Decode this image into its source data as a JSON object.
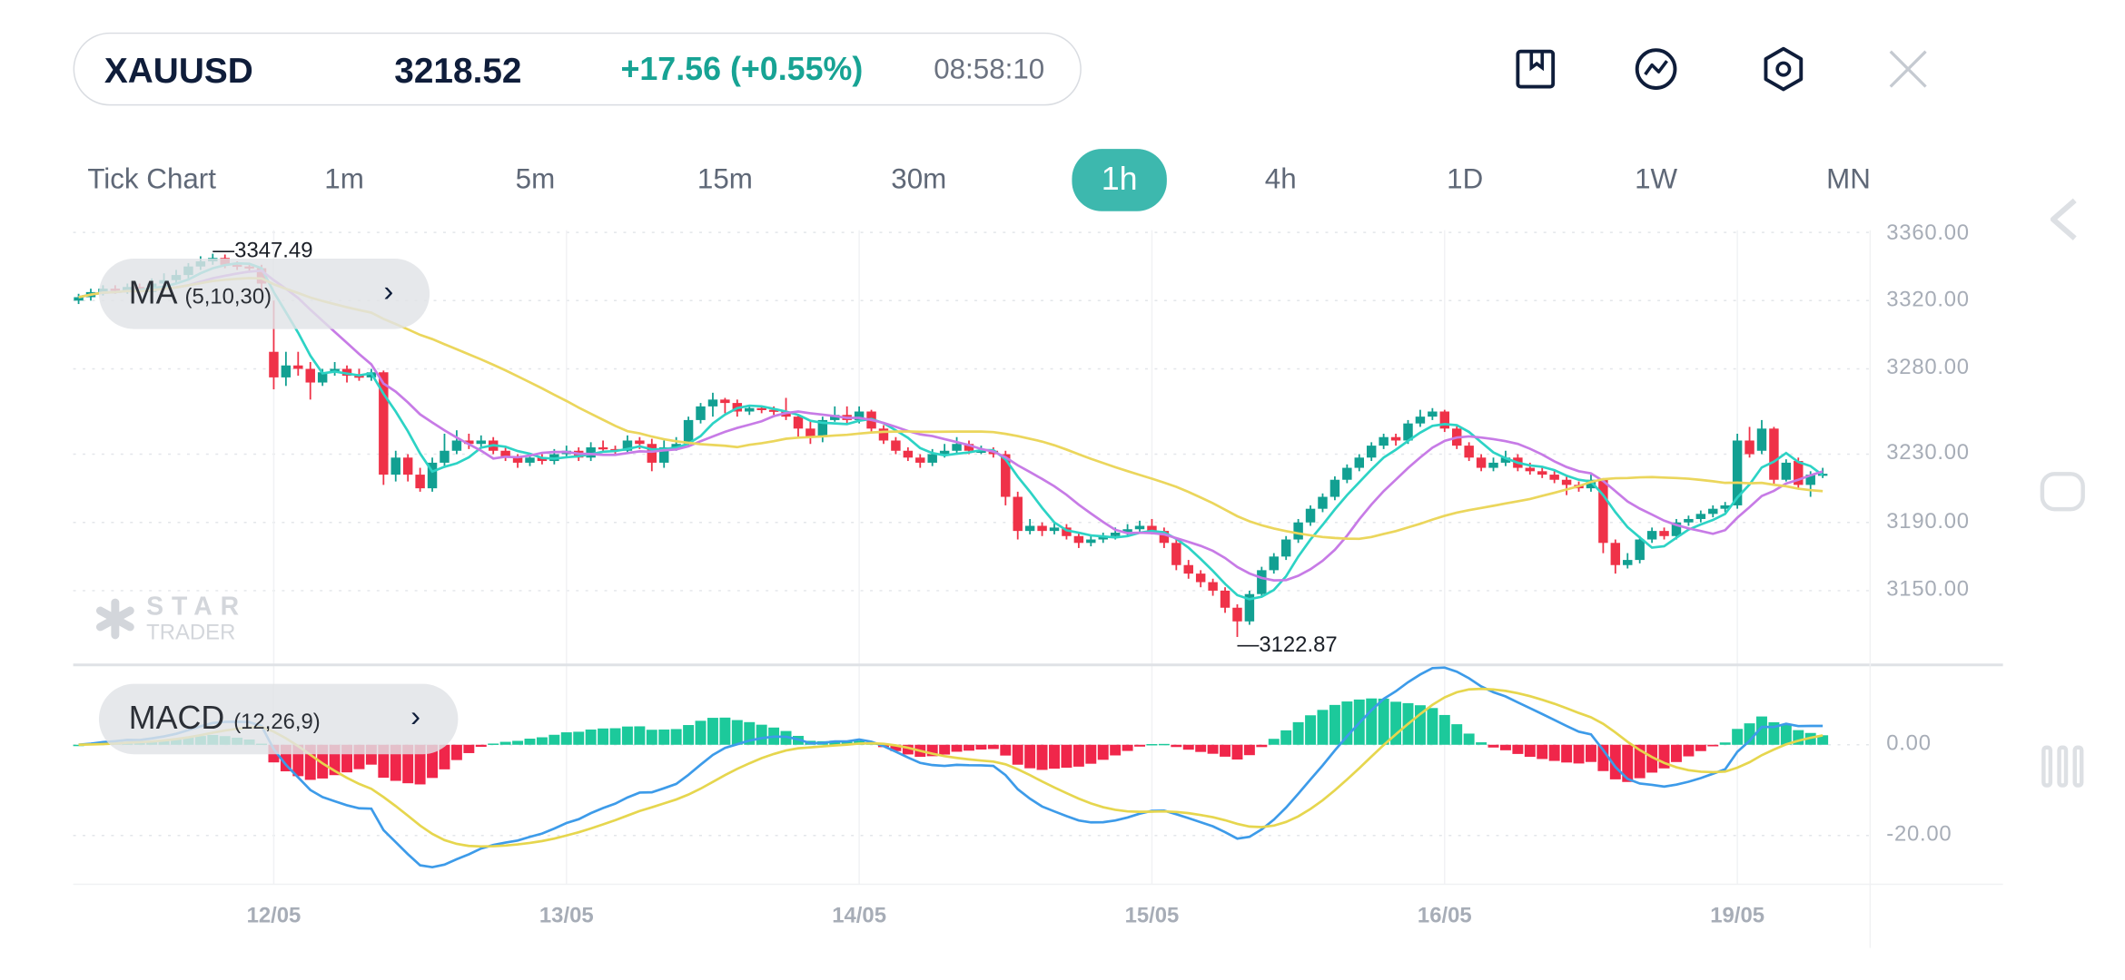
{
  "header": {
    "symbol": "XAUUSD",
    "price": "3218.52",
    "change": "+17.56 (+0.55%)",
    "time": "08:58:10",
    "icons": [
      "bookmark-icon",
      "chart-trend-icon",
      "settings-hexagon-icon",
      "close-icon"
    ]
  },
  "tabs": [
    {
      "label": "Tick Chart",
      "active": false
    },
    {
      "label": "1m",
      "active": false
    },
    {
      "label": "5m",
      "active": false
    },
    {
      "label": "15m",
      "active": false
    },
    {
      "label": "30m",
      "active": false
    },
    {
      "label": "1h",
      "active": true
    },
    {
      "label": "4h",
      "active": false
    },
    {
      "label": "1D",
      "active": false
    },
    {
      "label": "1W",
      "active": false
    },
    {
      "label": "MN",
      "active": false
    }
  ],
  "indicators": {
    "ma": {
      "name": "MA",
      "params": "(5,10,30)"
    },
    "macd": {
      "name": "MACD",
      "params": "(12,26,9)"
    }
  },
  "watermark": {
    "line1": "STAR",
    "line2": "TRADER"
  },
  "annotations": {
    "high": "3347.49",
    "low": "3122.87"
  },
  "colors": {
    "up": "#12a092",
    "down": "#ef3248",
    "ma5": "#2dd3c5",
    "ma10": "#c77be6",
    "ma30": "#ebd65c",
    "dif": "#3d9be9",
    "dea": "#e6d64e",
    "hist_up": "#1cc99b",
    "hist_down": "#f0264a",
    "accent": "#3db8ae"
  },
  "chart_data": {
    "type": "candlestick",
    "interval": "1h",
    "price_ticks": [
      "3360.00",
      "3320.00",
      "3280.00",
      "3230.00",
      "3190.00",
      "3150.00"
    ],
    "macd_ticks": [
      "0.00",
      "-20.00"
    ],
    "x_labels": [
      {
        "label": "12/05",
        "index": 16
      },
      {
        "label": "13/05",
        "index": 40
      },
      {
        "label": "14/05",
        "index": 64
      },
      {
        "label": "15/05",
        "index": 88
      },
      {
        "label": "16/05",
        "index": 112
      },
      {
        "label": "19/05",
        "index": 136
      }
    ],
    "grid": true,
    "ohlc_fields": [
      "open",
      "high",
      "low",
      "close"
    ],
    "candles": [
      [
        3320,
        3324,
        3318,
        3322
      ],
      [
        3322,
        3327,
        3320,
        3325
      ],
      [
        3325,
        3329,
        3323,
        3327
      ],
      [
        3327,
        3329,
        3324,
        3326
      ],
      [
        3326,
        3330,
        3324,
        3328
      ],
      [
        3328,
        3330,
        3323,
        3325
      ],
      [
        3325,
        3333,
        3323,
        3330
      ],
      [
        3330,
        3336,
        3328,
        3332
      ],
      [
        3332,
        3338,
        3330,
        3335
      ],
      [
        3335,
        3342,
        3333,
        3340
      ],
      [
        3340,
        3346,
        3338,
        3343
      ],
      [
        3343,
        3347.49,
        3341,
        3345
      ],
      [
        3345,
        3347,
        3339,
        3341
      ],
      [
        3341,
        3343,
        3338,
        3340
      ],
      [
        3340,
        3342,
        3337,
        3339
      ],
      [
        3339,
        3341,
        3326,
        3330
      ],
      [
        3290,
        3320,
        3268,
        3275
      ],
      [
        3275,
        3290,
        3270,
        3282
      ],
      [
        3282,
        3290,
        3276,
        3280
      ],
      [
        3280,
        3284,
        3262,
        3272
      ],
      [
        3272,
        3280,
        3270,
        3278
      ],
      [
        3278,
        3284,
        3276,
        3280
      ],
      [
        3280,
        3282,
        3272,
        3276
      ],
      [
        3276,
        3280,
        3273,
        3275
      ],
      [
        3275,
        3280,
        3273,
        3278
      ],
      [
        3278,
        3279,
        3212,
        3218
      ],
      [
        3218,
        3232,
        3214,
        3228
      ],
      [
        3228,
        3230,
        3214,
        3218
      ],
      [
        3218,
        3222,
        3208,
        3210
      ],
      [
        3210,
        3228,
        3208,
        3225
      ],
      [
        3225,
        3242,
        3222,
        3232
      ],
      [
        3232,
        3244,
        3230,
        3238
      ],
      [
        3238,
        3242,
        3233,
        3236
      ],
      [
        3236,
        3241,
        3234,
        3238
      ],
      [
        3238,
        3240,
        3230,
        3232
      ],
      [
        3232,
        3234,
        3226,
        3228
      ],
      [
        3228,
        3230,
        3222,
        3225
      ],
      [
        3225,
        3230,
        3223,
        3228
      ],
      [
        3228,
        3230,
        3224,
        3226
      ],
      [
        3226,
        3233,
        3224,
        3230
      ],
      [
        3230,
        3235,
        3228,
        3232
      ],
      [
        3232,
        3234,
        3226,
        3228
      ],
      [
        3228,
        3237,
        3226,
        3234
      ],
      [
        3234,
        3238,
        3231,
        3233
      ],
      [
        3233,
        3235,
        3230,
        3232
      ],
      [
        3232,
        3241,
        3230,
        3238
      ],
      [
        3238,
        3240,
        3233,
        3236
      ],
      [
        3236,
        3239,
        3220,
        3225
      ],
      [
        3225,
        3238,
        3222,
        3234
      ],
      [
        3234,
        3240,
        3232,
        3236
      ],
      [
        3236,
        3252,
        3234,
        3250
      ],
      [
        3250,
        3260,
        3248,
        3258
      ],
      [
        3258,
        3266,
        3252,
        3262
      ],
      [
        3262,
        3263,
        3254,
        3260
      ],
      [
        3260,
        3262,
        3252,
        3255
      ],
      [
        3255,
        3259,
        3253,
        3257
      ],
      [
        3257,
        3258,
        3254,
        3256
      ],
      [
        3256,
        3258,
        3253,
        3255
      ],
      [
        3255,
        3263,
        3250,
        3252
      ],
      [
        3252,
        3253,
        3240,
        3245
      ],
      [
        3245,
        3250,
        3236,
        3240
      ],
      [
        3240,
        3252,
        3237,
        3250
      ],
      [
        3250,
        3258,
        3249,
        3253
      ],
      [
        3253,
        3258,
        3248,
        3250
      ],
      [
        3250,
        3258,
        3248,
        3255
      ],
      [
        3255,
        3256,
        3243,
        3245
      ],
      [
        3245,
        3247,
        3236,
        3238
      ],
      [
        3238,
        3240,
        3230,
        3232
      ],
      [
        3232,
        3234,
        3226,
        3228
      ],
      [
        3228,
        3230,
        3222,
        3225
      ],
      [
        3225,
        3233,
        3223,
        3230
      ],
      [
        3230,
        3236,
        3228,
        3232
      ],
      [
        3232,
        3240,
        3230,
        3236
      ],
      [
        3236,
        3238,
        3230,
        3232
      ],
      [
        3232,
        3235,
        3230,
        3232
      ],
      [
        3232,
        3234,
        3228,
        3230
      ],
      [
        3230,
        3232,
        3200,
        3205
      ],
      [
        3205,
        3208,
        3180,
        3185
      ],
      [
        3185,
        3192,
        3183,
        3188
      ],
      [
        3188,
        3190,
        3182,
        3185
      ],
      [
        3185,
        3190,
        3183,
        3187
      ],
      [
        3187,
        3189,
        3180,
        3182
      ],
      [
        3182,
        3184,
        3175,
        3178
      ],
      [
        3178,
        3183,
        3176,
        3180
      ],
      [
        3180,
        3184,
        3178,
        3182
      ],
      [
        3182,
        3187,
        3180,
        3184
      ],
      [
        3184,
        3189,
        3182,
        3186
      ],
      [
        3186,
        3191,
        3184,
        3188
      ],
      [
        3188,
        3192,
        3183,
        3185
      ],
      [
        3185,
        3187,
        3175,
        3178
      ],
      [
        3178,
        3180,
        3162,
        3165
      ],
      [
        3165,
        3168,
        3157,
        3160
      ],
      [
        3160,
        3162,
        3152,
        3155
      ],
      [
        3155,
        3157,
        3147,
        3150
      ],
      [
        3150,
        3152,
        3137,
        3140
      ],
      [
        3140,
        3142,
        3122.87,
        3132
      ],
      [
        3132,
        3150,
        3130,
        3148
      ],
      [
        3148,
        3164,
        3146,
        3162
      ],
      [
        3162,
        3172,
        3160,
        3170
      ],
      [
        3170,
        3182,
        3168,
        3180
      ],
      [
        3180,
        3192,
        3178,
        3190
      ],
      [
        3190,
        3200,
        3188,
        3198
      ],
      [
        3198,
        3207,
        3196,
        3205
      ],
      [
        3205,
        3217,
        3203,
        3215
      ],
      [
        3215,
        3224,
        3213,
        3222
      ],
      [
        3222,
        3230,
        3220,
        3228
      ],
      [
        3228,
        3237,
        3226,
        3235
      ],
      [
        3235,
        3242,
        3233,
        3240
      ],
      [
        3240,
        3242,
        3235,
        3238
      ],
      [
        3238,
        3250,
        3236,
        3248
      ],
      [
        3248,
        3256,
        3246,
        3252
      ],
      [
        3252,
        3257,
        3250,
        3255
      ],
      [
        3255,
        3256,
        3243,
        3245
      ],
      [
        3245,
        3247,
        3233,
        3235
      ],
      [
        3235,
        3237,
        3226,
        3228
      ],
      [
        3228,
        3230,
        3220,
        3222
      ],
      [
        3222,
        3228,
        3220,
        3225
      ],
      [
        3225,
        3232,
        3223,
        3228
      ],
      [
        3228,
        3230,
        3220,
        3222
      ],
      [
        3222,
        3225,
        3218,
        3220
      ],
      [
        3220,
        3223,
        3216,
        3218
      ],
      [
        3218,
        3221,
        3213,
        3215
      ],
      [
        3215,
        3217,
        3206,
        3212
      ],
      [
        3212,
        3214,
        3208,
        3210
      ],
      [
        3210,
        3218,
        3208,
        3215
      ],
      [
        3215,
        3216,
        3172,
        3178
      ],
      [
        3178,
        3180,
        3160,
        3165
      ],
      [
        3165,
        3172,
        3163,
        3168
      ],
      [
        3168,
        3182,
        3166,
        3180
      ],
      [
        3180,
        3187,
        3178,
        3185
      ],
      [
        3185,
        3187,
        3180,
        3182
      ],
      [
        3182,
        3192,
        3180,
        3190
      ],
      [
        3190,
        3194,
        3188,
        3192
      ],
      [
        3192,
        3197,
        3190,
        3195
      ],
      [
        3195,
        3200,
        3193,
        3198
      ],
      [
        3198,
        3202,
        3196,
        3200
      ],
      [
        3200,
        3242,
        3198,
        3238
      ],
      [
        3238,
        3246,
        3228,
        3230
      ],
      [
        3232,
        3250,
        3230,
        3245
      ],
      [
        3245,
        3246,
        3212,
        3215
      ],
      [
        3215,
        3227,
        3214,
        3225
      ],
      [
        3226,
        3228,
        3210,
        3212
      ],
      [
        3212,
        3220,
        3205,
        3218
      ],
      [
        3218,
        3222,
        3216,
        3218.52
      ]
    ],
    "ma_periods": [
      5,
      10,
      30
    ],
    "macd_params": [
      12,
      26,
      9
    ]
  },
  "system_nav": [
    "back-icon",
    "home-icon",
    "recents-icon"
  ]
}
